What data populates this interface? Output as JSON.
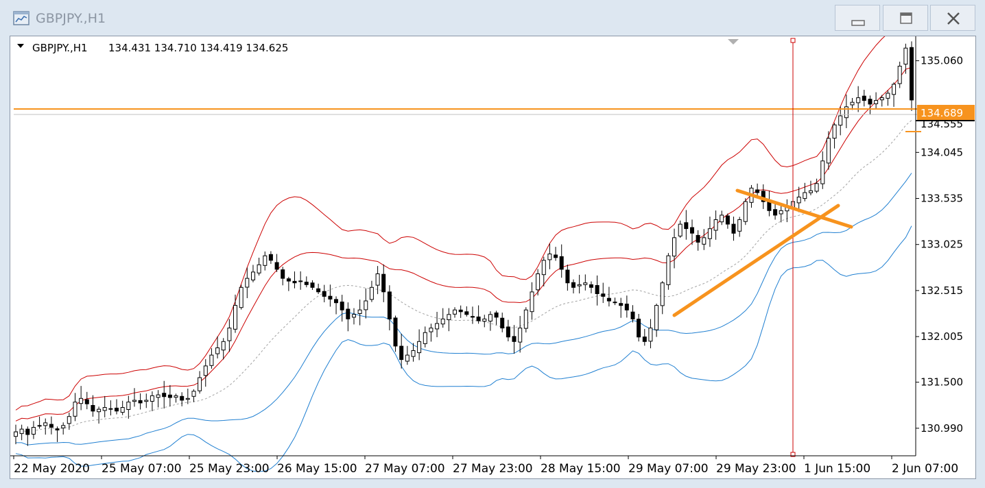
{
  "window": {
    "title": "GBPJPY.,H1",
    "controls": [
      "minimize",
      "maximize",
      "close"
    ]
  },
  "chart_info": {
    "symbol_tf": "GBPJPY.,H1",
    "ohlc": "134.431 134.710 134.419 134.625",
    "dropdown_icon": "triangle-down-icon"
  },
  "price_line": {
    "label": "134.689",
    "color": "#f7931e"
  },
  "chart_data": {
    "type": "line",
    "title": "GBPJPY.,H1",
    "description_note": "Candlestick price chart with Bollinger Bands",
    "y_ticks": [
      "135.060",
      "134.045",
      "133.535",
      "133.025",
      "132.515",
      "132.005",
      "131.500",
      "130.990"
    ],
    "x_ticks": [
      "22 May 2020",
      "25 May 07:00",
      "25 May 23:00",
      "26 May 15:00",
      "27 May 07:00",
      "27 May 23:00",
      "28 May 15:00",
      "29 May 07:00",
      "29 May 23:00",
      "1 Jun 15:00",
      "2 Jun 07:00"
    ],
    "ylim": [
      130.7,
      135.3
    ],
    "current_price": 134.689,
    "hidden_price_label": "134.555",
    "close_series": [
      130.95,
      130.98,
      130.92,
      131.0,
      131.02,
      131.05,
      131.0,
      130.97,
      131.02,
      131.12,
      131.28,
      131.32,
      131.26,
      131.18,
      131.2,
      131.22,
      131.2,
      131.18,
      131.22,
      131.28,
      131.3,
      131.27,
      131.3,
      131.35,
      131.36,
      131.34,
      131.33,
      131.35,
      131.3,
      131.32,
      131.4,
      131.55,
      131.68,
      131.8,
      131.88,
      131.95,
      132.1,
      132.35,
      132.55,
      132.65,
      132.72,
      132.8,
      132.9,
      132.85,
      132.75,
      132.65,
      132.62,
      132.6,
      132.62,
      132.58,
      132.55,
      132.5,
      132.45,
      132.42,
      132.38,
      132.3,
      132.2,
      132.25,
      132.3,
      132.4,
      132.55,
      132.7,
      132.5,
      132.2,
      131.9,
      131.75,
      131.8,
      131.85,
      131.95,
      132.05,
      132.1,
      132.15,
      132.2,
      132.25,
      132.3,
      132.28,
      132.25,
      132.22,
      132.18,
      132.2,
      132.25,
      132.22,
      132.1,
      132.0,
      131.95,
      132.1,
      132.3,
      132.5,
      132.7,
      132.85,
      132.92,
      132.88,
      132.75,
      132.6,
      132.55,
      132.58,
      132.6,
      132.55,
      132.48,
      132.45,
      132.4,
      132.38,
      132.35,
      132.3,
      132.2,
      132.0,
      131.95,
      132.1,
      132.35,
      132.6,
      132.9,
      133.1,
      133.25,
      133.2,
      133.15,
      133.05,
      133.1,
      133.2,
      133.3,
      133.35,
      133.25,
      133.15,
      133.3,
      133.5,
      133.65,
      133.6,
      133.5,
      133.4,
      133.35,
      133.4,
      133.45,
      133.5,
      133.55,
      133.6,
      133.62,
      133.7,
      133.95,
      134.2,
      134.35,
      134.45,
      134.55,
      134.6,
      134.65,
      134.62,
      134.58,
      134.62,
      134.65,
      134.7,
      134.8,
      135.0,
      135.2,
      134.625
    ],
    "trendlines": [
      {
        "name": "rising",
        "color": "#f7931e"
      },
      {
        "name": "falling",
        "color": "#f7931e"
      }
    ],
    "bands_colors": {
      "upper": "#cc0000",
      "middle": "#cc0000",
      "lower": "#1f7fd1",
      "sma": "#a0a0a0"
    }
  }
}
